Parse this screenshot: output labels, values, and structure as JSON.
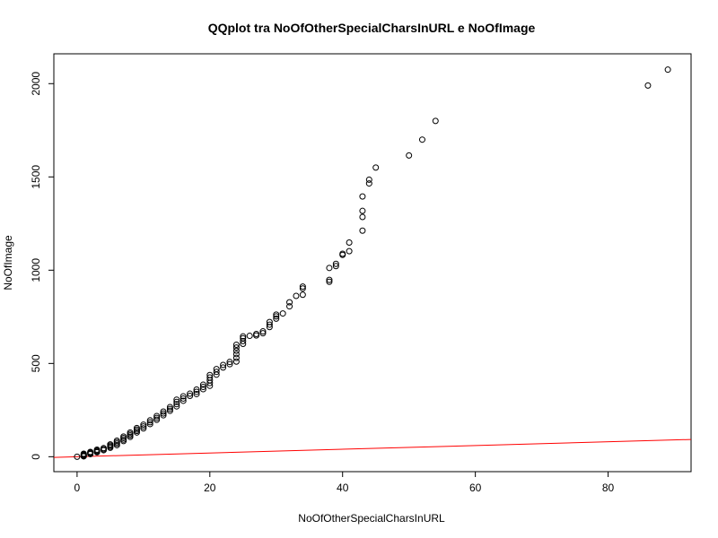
{
  "chart_data": {
    "type": "scatter",
    "title": "QQplot tra NoOfOtherSpecialCharsInURL e NoOfImage",
    "xlabel": "NoOfOtherSpecialCharsInURL",
    "ylabel": "NoOfImage",
    "xlim": [
      -3.5,
      92.5
    ],
    "ylim": [
      -80,
      2160
    ],
    "x_ticks": [
      0,
      20,
      40,
      60,
      80
    ],
    "y_ticks": [
      0,
      500,
      1000,
      1500,
      2000
    ],
    "grid": false,
    "legend": "none",
    "colors": {
      "points": "#000000",
      "reference_line": "#ff0000"
    },
    "reference_line": {
      "intercept": 0,
      "slope": 1
    },
    "series": [
      {
        "points": [
          [
            0,
            0
          ],
          [
            1,
            2
          ],
          [
            1,
            5
          ],
          [
            1,
            8
          ],
          [
            1,
            12
          ],
          [
            1,
            16
          ],
          [
            2,
            14
          ],
          [
            2,
            18
          ],
          [
            2,
            22
          ],
          [
            2,
            26
          ],
          [
            3,
            24
          ],
          [
            3,
            28
          ],
          [
            3,
            33
          ],
          [
            3,
            38
          ],
          [
            4,
            35
          ],
          [
            4,
            40
          ],
          [
            4,
            46
          ],
          [
            5,
            48
          ],
          [
            5,
            54
          ],
          [
            5,
            60
          ],
          [
            5,
            66
          ],
          [
            6,
            62
          ],
          [
            6,
            70
          ],
          [
            6,
            78
          ],
          [
            6,
            86
          ],
          [
            7,
            84
          ],
          [
            7,
            92
          ],
          [
            7,
            100
          ],
          [
            7,
            108
          ],
          [
            8,
            106
          ],
          [
            8,
            114
          ],
          [
            8,
            122
          ],
          [
            8,
            130
          ],
          [
            9,
            130
          ],
          [
            9,
            138
          ],
          [
            9,
            146
          ],
          [
            9,
            154
          ],
          [
            10,
            152
          ],
          [
            10,
            162
          ],
          [
            10,
            172
          ],
          [
            11,
            175
          ],
          [
            11,
            185
          ],
          [
            11,
            195
          ],
          [
            12,
            198
          ],
          [
            12,
            208
          ],
          [
            12,
            218
          ],
          [
            13,
            222
          ],
          [
            13,
            232
          ],
          [
            13,
            242
          ],
          [
            14,
            246
          ],
          [
            14,
            256
          ],
          [
            14,
            266
          ],
          [
            15,
            270
          ],
          [
            15,
            282
          ],
          [
            15,
            294
          ],
          [
            15,
            306
          ],
          [
            16,
            300
          ],
          [
            16,
            312
          ],
          [
            16,
            324
          ],
          [
            17,
            326
          ],
          [
            17,
            338
          ],
          [
            18,
            336
          ],
          [
            18,
            348
          ],
          [
            18,
            360
          ],
          [
            19,
            362
          ],
          [
            19,
            374
          ],
          [
            19,
            386
          ],
          [
            20,
            380
          ],
          [
            20,
            395
          ],
          [
            20,
            410
          ],
          [
            20,
            425
          ],
          [
            20,
            438
          ],
          [
            21,
            440
          ],
          [
            21,
            455
          ],
          [
            21,
            470
          ],
          [
            22,
            478
          ],
          [
            22,
            492
          ],
          [
            23,
            496
          ],
          [
            23,
            508
          ],
          [
            24,
            510
          ],
          [
            24,
            530
          ],
          [
            24,
            550
          ],
          [
            24,
            568
          ],
          [
            24,
            585
          ],
          [
            24,
            600
          ],
          [
            25,
            605
          ],
          [
            25,
            620
          ],
          [
            25,
            635
          ],
          [
            25,
            645
          ],
          [
            26,
            648
          ],
          [
            27,
            650
          ],
          [
            27,
            658
          ],
          [
            28,
            662
          ],
          [
            28,
            672
          ],
          [
            29,
            695
          ],
          [
            29,
            708
          ],
          [
            29,
            722
          ],
          [
            30,
            740
          ],
          [
            30,
            752
          ],
          [
            30,
            762
          ],
          [
            31,
            768
          ],
          [
            32,
            806
          ],
          [
            32,
            828
          ],
          [
            33,
            862
          ],
          [
            34,
            868
          ],
          [
            34,
            902
          ],
          [
            34,
            912
          ],
          [
            38,
            938
          ],
          [
            38,
            948
          ],
          [
            38,
            1012
          ],
          [
            39,
            1022
          ],
          [
            39,
            1034
          ],
          [
            40,
            1082
          ],
          [
            40,
            1088
          ],
          [
            41,
            1102
          ],
          [
            41,
            1148
          ],
          [
            43,
            1212
          ],
          [
            43,
            1285
          ],
          [
            43,
            1318
          ],
          [
            43,
            1395
          ],
          [
            44,
            1465
          ],
          [
            44,
            1485
          ],
          [
            45,
            1550
          ],
          [
            50,
            1615
          ],
          [
            52,
            1700
          ],
          [
            54,
            1800
          ],
          [
            86,
            1990
          ],
          [
            89,
            2075
          ]
        ]
      }
    ]
  }
}
